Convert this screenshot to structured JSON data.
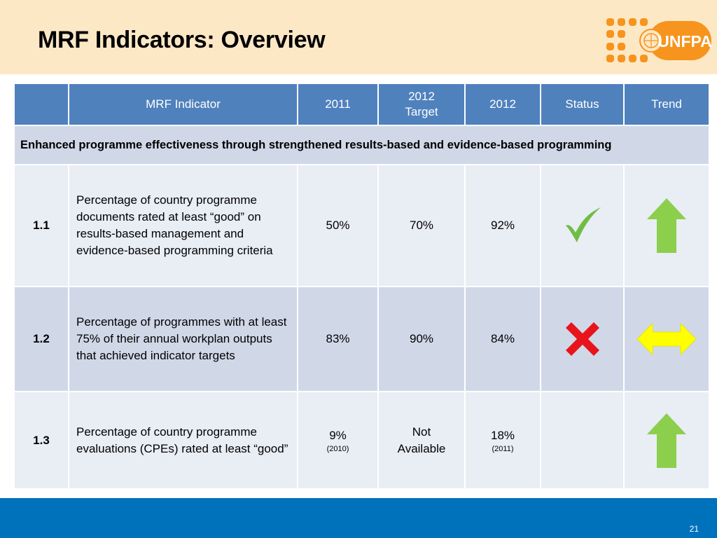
{
  "slide": {
    "title": "MRF Indicators: Overview",
    "page_number": "21",
    "logo_text": "UNFPA"
  },
  "table": {
    "headers": [
      "",
      "MRF Indicator",
      "2011",
      "2012 Target",
      "2012",
      "Status",
      "Trend"
    ],
    "section_title": "Enhanced programme effectiveness through strengthened results-based and evidence-based programming",
    "rows": [
      {
        "id": "1.1",
        "indicator": "Percentage of country programme documents rated at least “good” on results-based management and evidence-based programming criteria",
        "y2011": "50%",
        "y2011_note": "",
        "target2012": "70%",
        "y2012": "92%",
        "y2012_note": "",
        "status_icon": "check-icon",
        "trend_icon": "arrow-up-icon"
      },
      {
        "id": "1.2",
        "indicator": "Percentage of programmes with at least 75% of their annual workplan outputs that achieved indicator targets",
        "y2011": "83%",
        "y2011_note": "",
        "target2012": "90%",
        "y2012": "84%",
        "y2012_note": "",
        "status_icon": "cross-icon",
        "trend_icon": "arrow-left-right-icon"
      },
      {
        "id": "1.3",
        "indicator": "Percentage of country programme evaluations (CPEs) rated at least “good”",
        "y2011": "9%",
        "y2011_note": "(2010)",
        "target2012": "Not Available",
        "y2012": "18%",
        "y2012_note": "(2011)",
        "status_icon": "",
        "trend_icon": "arrow-up-icon"
      }
    ]
  },
  "colors": {
    "header_band": "#fde8c6",
    "footer_band": "#0072bc",
    "table_header": "#4f81bd",
    "row_dark": "#d0d8e8",
    "row_light": "#e9edf4",
    "status_check": "#6fbe44",
    "status_cross": "#e8141c",
    "trend_up": "#8ccf4d",
    "trend_flat": "#ffff00",
    "logo_orange": "#f7941d"
  }
}
